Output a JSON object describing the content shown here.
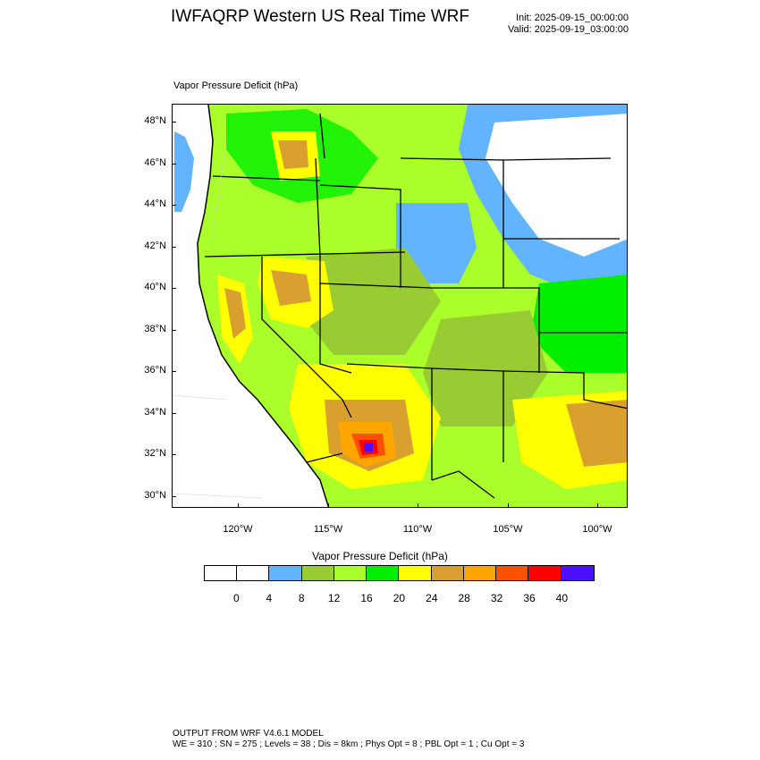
{
  "header": {
    "title": "IWFAQRP Western US Real Time WRF",
    "init": "Init: 2025-09-15_00:00:00",
    "valid": "Valid: 2025-09-19_03:00:00"
  },
  "map": {
    "field_label": "Vapor Pressure Deficit   (hPa)",
    "field_units": "hPa",
    "lat_ticks": [
      "48°N",
      "46°N",
      "44°N",
      "42°N",
      "40°N",
      "38°N",
      "36°N",
      "34°N",
      "32°N",
      "30°N"
    ],
    "lon_ticks": [
      "120°W",
      "115°W",
      "110°W",
      "105°W",
      "100°W"
    ],
    "ocean_color": "#ffffff",
    "state_border_color": "#000000",
    "county_border_color": "#333333"
  },
  "legend": {
    "title": "Vapor Pressure Deficit  (hPa)",
    "levels": [
      "0",
      "4",
      "8",
      "12",
      "16",
      "20",
      "24",
      "28",
      "32",
      "36",
      "40"
    ],
    "colors": [
      "#ffffff",
      "#ffffff",
      "#62b4ff",
      "#99cc33",
      "#aaff2a",
      "#00ee00",
      "#ffff00",
      "#d9a030",
      "#ffa500",
      "#ff5000",
      "#ff0000",
      "#4b10ff"
    ]
  },
  "footer": {
    "line1": "OUTPUT FROM WRF V4.6.1 MODEL",
    "line2": "WE = 310 ; SN = 275 ; Levels = 38 ; Dis = 8km ; Phys Opt = 8 ; PBL Opt = 1 ; Cu Opt = 3"
  }
}
